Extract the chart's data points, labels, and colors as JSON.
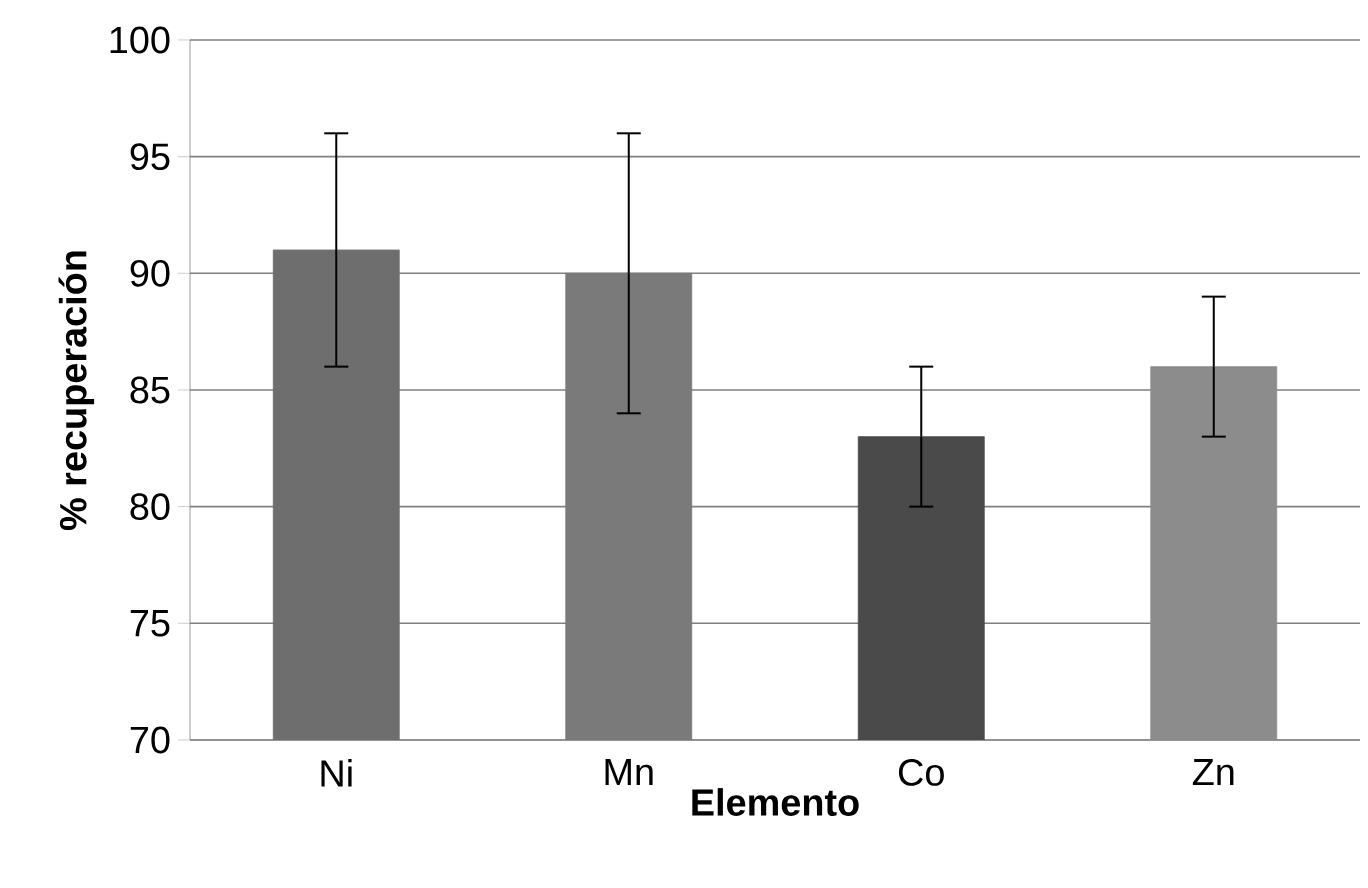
{
  "chart_data": {
    "type": "bar",
    "xlabel": "Elemento",
    "ylabel": "% recuperación",
    "categories": [
      "Ni",
      "Mn",
      "Co",
      "Zn"
    ],
    "values": [
      91,
      90,
      83,
      86
    ],
    "errors": [
      5,
      6,
      3,
      3
    ],
    "colors": [
      "#6e6e6e",
      "#7a7a7a",
      "#4a4a4a",
      "#8c8c8c"
    ],
    "ylim": [
      70,
      100
    ],
    "yticks": [
      70,
      75,
      80,
      85,
      90,
      95,
      100
    ],
    "grid": "y"
  }
}
